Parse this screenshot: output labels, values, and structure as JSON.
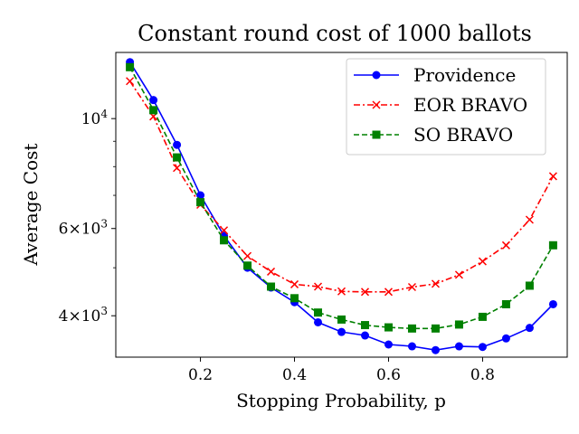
{
  "chart_data": {
    "type": "line",
    "title": "Constant round cost of 1000 ballots",
    "xlabel": "Stopping Probability, p",
    "ylabel": "Average Cost",
    "yscale": "log",
    "xlim": [
      0.02,
      0.98
    ],
    "ylim": [
      3300,
      13600
    ],
    "x_ticks": [
      0.2,
      0.4,
      0.6,
      0.8
    ],
    "x_tick_labels": [
      "0.2",
      "0.4",
      "0.6",
      "0.8"
    ],
    "y_ticks": [
      {
        "value": 4000,
        "base": "4",
        "times": "×",
        "exp_base": "10",
        "exp": "3"
      },
      {
        "value": 6000,
        "base": "6",
        "times": "×",
        "exp_base": "10",
        "exp": "3"
      },
      {
        "value": 10000,
        "base": "",
        "times": "",
        "exp_base": "10",
        "exp": "4"
      }
    ],
    "y_minor_ticks": [
      5000,
      7000,
      8000,
      9000
    ],
    "legend_position": "top-right",
    "grid": false,
    "x": [
      0.05,
      0.1,
      0.15,
      0.2,
      0.25,
      0.3,
      0.35,
      0.4,
      0.45,
      0.5,
      0.55,
      0.6,
      0.65,
      0.7,
      0.75,
      0.8,
      0.85,
      0.9,
      0.95
    ],
    "series": [
      {
        "name": "Providence",
        "color": "#0000ff",
        "dash": "solid",
        "marker": "circle",
        "values": [
          13000,
          10900,
          8850,
          7000,
          5800,
          5000,
          4560,
          4260,
          3880,
          3710,
          3650,
          3500,
          3470,
          3410,
          3470,
          3460,
          3600,
          3780,
          4220
        ]
      },
      {
        "name": "EOR BRAVO",
        "color": "#ff0000",
        "dash": "dashdot",
        "marker": "x",
        "values": [
          11900,
          10100,
          7950,
          6700,
          5950,
          5280,
          4910,
          4630,
          4580,
          4480,
          4470,
          4470,
          4570,
          4640,
          4840,
          5150,
          5550,
          6250,
          7650
        ]
      },
      {
        "name": "SO BRAVO",
        "color": "#008000",
        "dash": "dashed",
        "marker": "square",
        "values": [
          12700,
          10400,
          8350,
          6780,
          5680,
          5050,
          4580,
          4340,
          4060,
          3930,
          3830,
          3790,
          3770,
          3770,
          3840,
          3980,
          4220,
          4600,
          5550
        ]
      }
    ]
  }
}
